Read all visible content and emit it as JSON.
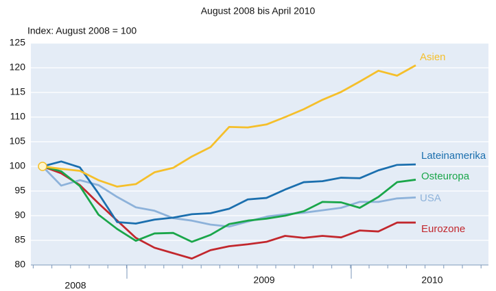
{
  "chart_data": {
    "type": "line",
    "title": "August 2008 bis April 2010",
    "subtitle": "Index: August 2008 = 100",
    "categories": [
      null,
      null,
      null,
      null,
      null,
      null,
      null,
      null,
      null,
      null,
      null,
      null,
      null,
      null,
      null,
      null,
      null,
      null,
      null,
      null,
      null
    ],
    "year_labels": [
      "2008",
      "2009",
      "2010"
    ],
    "ylim": [
      80,
      125
    ],
    "yticks": [
      80,
      85,
      90,
      95,
      100,
      105,
      110,
      115,
      120,
      125
    ],
    "grid": true,
    "series": [
      {
        "name": "Asien",
        "color": "#f5bf2a",
        "values": [
          100,
          99.5,
          99.1,
          97.2,
          95.9,
          96.4,
          98.8,
          99.7,
          102,
          103.9,
          108,
          107.9,
          108.5,
          110,
          111.6,
          113.5,
          115.1,
          117.2,
          119.4,
          118.4,
          120.5
        ]
      },
      {
        "name": "Lateinamerika",
        "color": "#1b6fae",
        "values": [
          100,
          101,
          99.8,
          94.5,
          88.7,
          88.4,
          89.2,
          89.6,
          90.3,
          90.5,
          91.4,
          93.3,
          93.6,
          95.3,
          96.8,
          97,
          97.7,
          97.6,
          99.2,
          100.3,
          100.4
        ]
      },
      {
        "name": "Osteuropa",
        "color": "#1aa64a",
        "values": [
          100,
          99,
          96,
          90.2,
          87.3,
          84.9,
          86.4,
          86.5,
          84.7,
          86.1,
          88.3,
          89,
          89.4,
          90,
          90.9,
          92.8,
          92.7,
          91.6,
          93.8,
          96.8,
          97.3
        ]
      },
      {
        "name": "USA",
        "color": "#8db2da",
        "values": [
          100,
          96.1,
          97.2,
          96.2,
          93.8,
          91.7,
          91,
          89.5,
          89,
          88.2,
          87.8,
          88.8,
          89.8,
          90.3,
          90.6,
          91.1,
          91.6,
          92.8,
          92.8,
          93.5,
          93.7
        ]
      },
      {
        "name": "Eurozone",
        "color": "#c2272d",
        "values": [
          100,
          98.6,
          96.2,
          92.5,
          89,
          85.5,
          83.5,
          82.4,
          81.3,
          83,
          83.8,
          84.2,
          84.7,
          85.9,
          85.5,
          85.9,
          85.6,
          87,
          86.8,
          88.6,
          88.6
        ]
      }
    ]
  }
}
